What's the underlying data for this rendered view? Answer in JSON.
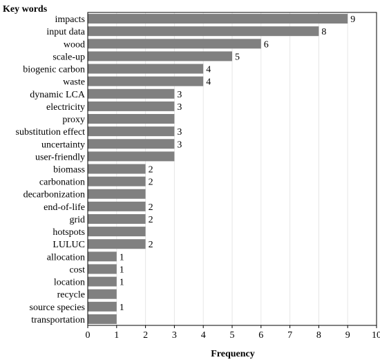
{
  "chart_data": {
    "type": "bar",
    "orientation": "horizontal",
    "title": "Key words",
    "xlabel": "Frequency",
    "ylabel": "",
    "xlim": [
      0,
      10
    ],
    "x_ticks": [
      "0",
      "1",
      "2",
      "3",
      "4",
      "5",
      "6",
      "7",
      "8",
      "9",
      "10"
    ],
    "grid": true,
    "bar_color": "#808080",
    "categories": [
      "impacts",
      "input data",
      "wood",
      "scale-up",
      "biogenic carbon",
      "waste",
      "dynamic LCA",
      "electricity",
      "proxy",
      "substitution effect",
      "uncertainty",
      "user-friendly",
      "biomass",
      "carbonation",
      "decarbonization",
      "end-of-life",
      "grid",
      "hotspots",
      "LULUC",
      "allocation",
      "cost",
      "location",
      "recycle",
      "source species",
      "transportation"
    ],
    "values": [
      9,
      8,
      6,
      5,
      4,
      4,
      3,
      3,
      3,
      3,
      3,
      3,
      2,
      2,
      2,
      2,
      2,
      2,
      2,
      1,
      1,
      1,
      1,
      1,
      1
    ],
    "data_labels": [
      "9",
      "8",
      "6",
      "5",
      "4",
      "4",
      "3",
      "3",
      "",
      "3",
      "3",
      "",
      "2",
      "2",
      "",
      "2",
      "2",
      "",
      "2",
      "1",
      "1",
      "1",
      "",
      "1",
      ""
    ]
  }
}
